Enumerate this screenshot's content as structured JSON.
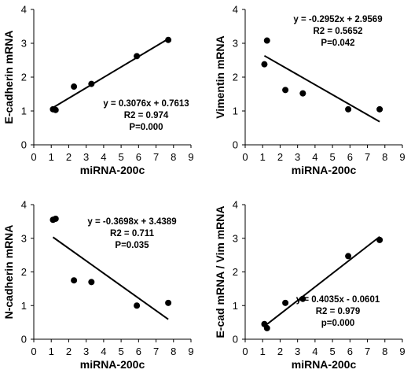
{
  "chart_data": [
    {
      "type": "scatter",
      "xlabel": "miRNA-200c",
      "ylabel": "E-cadherin mRNA",
      "xlim": [
        0,
        9
      ],
      "ylim": [
        0,
        4
      ],
      "xticks": [
        "0",
        "1",
        "2",
        "3",
        "4",
        "5",
        "6",
        "7",
        "8",
        "9"
      ],
      "yticks": [
        "0",
        "1",
        "2",
        "3",
        "4"
      ],
      "points": [
        {
          "x": 1.1,
          "y": 1.05
        },
        {
          "x": 1.25,
          "y": 1.03
        },
        {
          "x": 2.3,
          "y": 1.72
        },
        {
          "x": 3.3,
          "y": 1.8
        },
        {
          "x": 5.9,
          "y": 2.62
        },
        {
          "x": 7.7,
          "y": 3.1
        }
      ],
      "trendline": {
        "slope": 0.3076,
        "intercept": 0.7613,
        "x_range": [
          1.1,
          7.7
        ]
      },
      "annotations": [
        "y = 0.3076x + 0.7613",
        "R2 = 0.974",
        "P=0.000"
      ],
      "annotation_position": "bottom-right",
      "grid": false
    },
    {
      "type": "scatter",
      "xlabel": "miRNA-200c",
      "ylabel": "Vimentin mRNA",
      "xlim": [
        0,
        9
      ],
      "ylim": [
        0,
        4
      ],
      "xticks": [
        "0",
        "1",
        "2",
        "3",
        "4",
        "5",
        "6",
        "7",
        "8",
        "9"
      ],
      "yticks": [
        "0",
        "1",
        "2",
        "3",
        "4"
      ],
      "points": [
        {
          "x": 1.1,
          "y": 2.38
        },
        {
          "x": 1.25,
          "y": 3.08
        },
        {
          "x": 2.3,
          "y": 1.62
        },
        {
          "x": 3.3,
          "y": 1.52
        },
        {
          "x": 5.9,
          "y": 1.05
        },
        {
          "x": 7.7,
          "y": 1.05
        }
      ],
      "trendline": {
        "slope": -0.2952,
        "intercept": 2.9569,
        "x_range": [
          1.1,
          7.7
        ]
      },
      "annotations": [
        "y = -0.2952x + 2.9569",
        "R2 = 0.5652",
        "P=0.042"
      ],
      "annotation_position": "top-right",
      "grid": false
    },
    {
      "type": "scatter",
      "xlabel": "miRNA-200c",
      "ylabel": "N-cadherin mRNA",
      "xlim": [
        0,
        9
      ],
      "ylim": [
        0,
        4
      ],
      "xticks": [
        "0",
        "1",
        "2",
        "3",
        "4",
        "5",
        "6",
        "7",
        "8",
        "9"
      ],
      "yticks": [
        "0",
        "1",
        "2",
        "3",
        "4"
      ],
      "points": [
        {
          "x": 1.1,
          "y": 3.55
        },
        {
          "x": 1.25,
          "y": 3.58
        },
        {
          "x": 2.3,
          "y": 1.75
        },
        {
          "x": 3.3,
          "y": 1.7
        },
        {
          "x": 5.9,
          "y": 1.0
        },
        {
          "x": 7.7,
          "y": 1.08
        }
      ],
      "trendline": {
        "slope": -0.3698,
        "intercept": 3.4389,
        "x_range": [
          1.1,
          7.7
        ]
      },
      "annotations": [
        "y = -0.3698x + 3.4389",
        "R2 = 0.711",
        "P=0.035"
      ],
      "annotation_position": "top-right",
      "grid": false
    },
    {
      "type": "scatter",
      "xlabel": "miRNA-200c",
      "ylabel": "E-cad mRNA / Vim mRNA",
      "xlim": [
        0,
        9
      ],
      "ylim": [
        0,
        4
      ],
      "xticks": [
        "0",
        "1",
        "2",
        "3",
        "4",
        "5",
        "6",
        "7",
        "8",
        "9"
      ],
      "yticks": [
        "0",
        "1",
        "2",
        "3",
        "4"
      ],
      "points": [
        {
          "x": 1.1,
          "y": 0.45
        },
        {
          "x": 1.25,
          "y": 0.33
        },
        {
          "x": 2.3,
          "y": 1.08
        },
        {
          "x": 3.3,
          "y": 1.2
        },
        {
          "x": 5.9,
          "y": 2.47
        },
        {
          "x": 7.7,
          "y": 2.95
        }
      ],
      "trendline": {
        "slope": 0.4035,
        "intercept": -0.0601,
        "x_range": [
          1.1,
          7.7
        ]
      },
      "annotations": [
        "y = 0.4035x - 0.0601",
        "R2 = 0.979",
        "p=0.000"
      ],
      "annotation_position": "bottom-right",
      "grid": false
    }
  ]
}
